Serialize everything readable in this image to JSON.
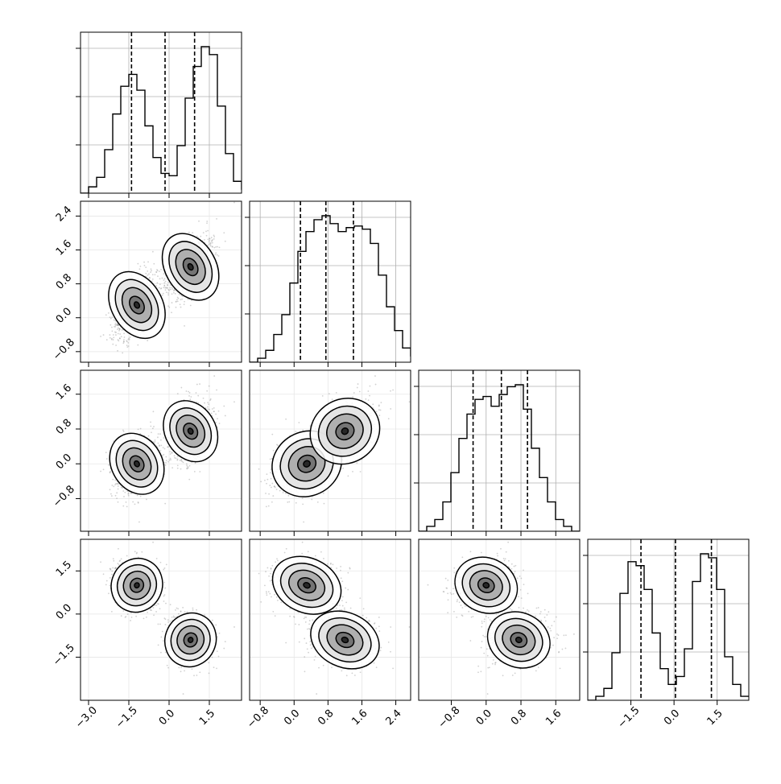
{
  "chart_data": {
    "type": "corner",
    "description_params": 4,
    "axes": {
      "x0": {
        "ticks": [
          -3.0,
          -1.5,
          0.0,
          1.5
        ],
        "tick_labels": [
          "−3.0",
          "−1.5",
          "0.0",
          "1.5"
        ],
        "range": [
          -3.3,
          2.7
        ]
      },
      "x1": {
        "ticks": [
          -0.8,
          0.0,
          0.8,
          1.6,
          2.4
        ],
        "tick_labels": [
          "−0.8",
          "0.0",
          "0.8",
          "1.6",
          "2.4"
        ],
        "range": [
          -1.05,
          2.75
        ]
      },
      "x2": {
        "ticks": [
          -0.8,
          0.0,
          0.8,
          1.6
        ],
        "tick_labels": [
          "−0.8",
          "0.0",
          "0.8",
          "1.6"
        ],
        "range": [
          -1.55,
          2.15
        ]
      },
      "x3": {
        "ticks": [
          -1.5,
          0.0,
          1.5
        ],
        "tick_labels": [
          "−1.5",
          "0.0",
          "1.5"
        ],
        "range": [
          -3.0,
          2.6
        ]
      }
    },
    "row_ticks": {
      "1": {
        "ticks": [
          -0.8,
          0.0,
          0.8,
          1.6,
          2.4
        ],
        "tick_labels": [
          "−0.8",
          "0.0",
          "0.8",
          "1.6",
          "2.4"
        ]
      },
      "2": {
        "ticks": [
          -0.8,
          0.0,
          0.8,
          1.6
        ],
        "tick_labels": [
          "−0.8",
          "0.0",
          "0.8",
          "1.6"
        ]
      },
      "3": {
        "ticks": [
          -1.5,
          0.0,
          1.5
        ],
        "tick_labels": [
          "−1.5",
          "0.0",
          "1.5"
        ]
      }
    },
    "quantiles": {
      "x0": [
        -1.4,
        -0.15,
        0.95
      ],
      "x1": [
        0.15,
        0.75,
        1.4
      ],
      "x2": [
        -0.3,
        0.35,
        0.95
      ],
      "x3": [
        -1.15,
        0.05,
        1.3
      ]
    },
    "histograms": {
      "x0": {
        "edges_start": -3.3,
        "edges_step": 0.3,
        "counts": [
          0,
          8,
          20,
          55,
          100,
          135,
          150,
          130,
          85,
          45,
          25,
          22,
          60,
          120,
          160,
          185,
          175,
          110,
          50,
          15,
          5,
          0
        ]
      },
      "x1": {
        "edges_start": -1.05,
        "edges_step": 0.19,
        "counts": [
          0,
          5,
          15,
          35,
          60,
          100,
          140,
          165,
          180,
          185,
          175,
          165,
          170,
          172,
          168,
          150,
          110,
          70,
          40,
          18,
          8,
          0
        ]
      },
      "x2": {
        "edges_start": -1.55,
        "edges_step": 0.185,
        "counts": [
          0,
          5,
          12,
          30,
          60,
          95,
          120,
          135,
          138,
          128,
          140,
          148,
          150,
          125,
          85,
          55,
          30,
          12,
          5,
          0
        ]
      },
      "x3": {
        "edges_start": -3.0,
        "edges_step": 0.28,
        "counts": [
          0,
          5,
          15,
          60,
          135,
          175,
          170,
          140,
          85,
          40,
          20,
          30,
          65,
          150,
          185,
          180,
          140,
          55,
          20,
          5
        ]
      }
    },
    "clusters": [
      {
        "mean": [
          -1.2,
          0.3,
          0.0,
          1.0
        ],
        "weight": 0.5
      },
      {
        "mean": [
          0.8,
          1.2,
          0.75,
          -0.9
        ],
        "weight": 0.5
      }
    ],
    "grid": true
  }
}
